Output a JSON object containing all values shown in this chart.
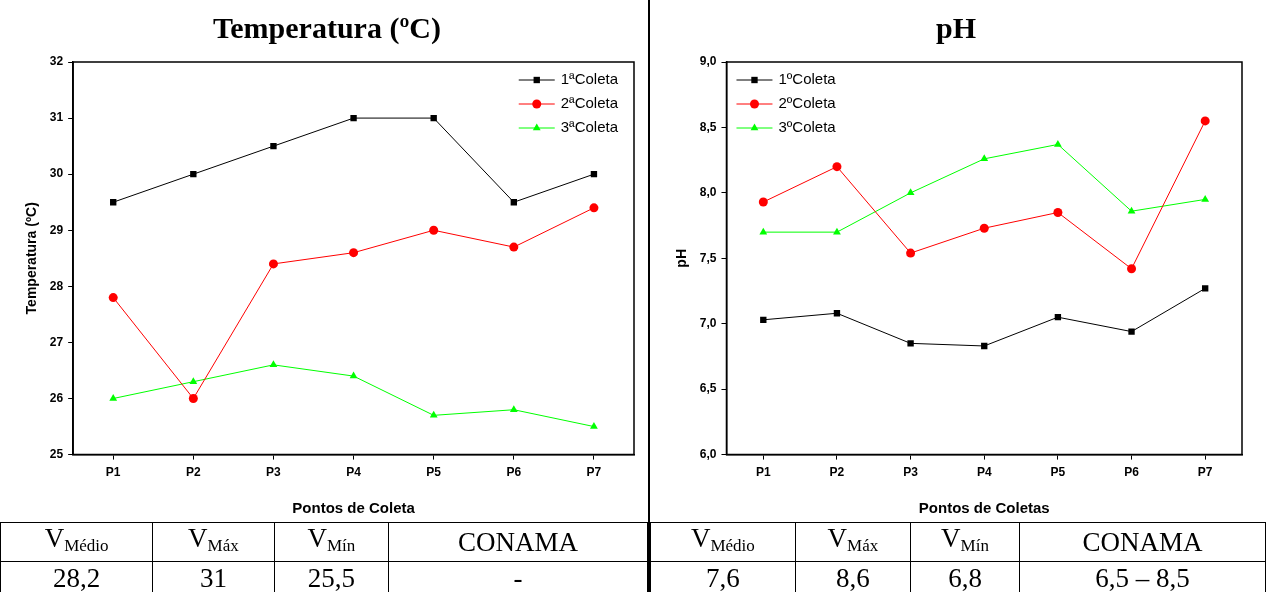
{
  "chart_data": [
    {
      "type": "line",
      "title": "Temperatura (ºC)",
      "xlabel": "Pontos de Coleta",
      "ylabel": "Temperatura (ºC)",
      "categories": [
        "P1",
        "P2",
        "P3",
        "P4",
        "P5",
        "P6",
        "P7"
      ],
      "series": [
        {
          "name": "1ªColeta",
          "color": "#000000",
          "marker": "square",
          "values": [
            29.5,
            30.0,
            30.5,
            31.0,
            31.0,
            29.5,
            30.0
          ]
        },
        {
          "name": "2ªColeta",
          "color": "#ff0000",
          "marker": "circle",
          "values": [
            27.8,
            26.0,
            28.4,
            28.6,
            29.0,
            28.7,
            29.4
          ]
        },
        {
          "name": "3ªColeta",
          "color": "#00ff00",
          "marker": "triangle",
          "values": [
            26.0,
            26.3,
            26.6,
            26.4,
            25.7,
            25.8,
            25.5
          ]
        }
      ],
      "ylim": [
        25,
        32
      ],
      "yticks": [
        25,
        26,
        27,
        28,
        29,
        30,
        31,
        32
      ],
      "grid": false,
      "legend": "top right",
      "line_style": "solid",
      "annotations": [
        "V$_{Médio}$",
        "28,2",
        "V$_{Máx}$",
        "31",
        "V$_{Mín}$",
        "25,5",
        "CONAMA",
        "-"
      ]
    },
    {
      "type": "line",
      "title": "pH",
      "xlabel": "Pontos de Coletas",
      "ylabel": "pH",
      "categories": [
        "P1",
        "P2",
        "P3",
        "P4",
        "P5",
        "P6",
        "P7"
      ],
      "series": [
        {
          "name": "1ºColeta",
          "color": "#000000",
          "marker": "square",
          "values": [
            7.03,
            7.08,
            6.85,
            6.83,
            7.05,
            6.94,
            7.27
          ]
        },
        {
          "name": "2ºColeta",
          "color": "#ff0000",
          "marker": "circle",
          "values": [
            7.93,
            8.2,
            7.54,
            7.73,
            7.85,
            7.42,
            8.55
          ]
        },
        {
          "name": "3ºColeta",
          "color": "#00ff00",
          "marker": "triangle",
          "values": [
            7.7,
            7.7,
            8.0,
            8.26,
            8.37,
            7.86,
            7.95
          ]
        }
      ],
      "ylim": [
        6,
        9
      ],
      "yticks": [
        {
          "value": 6,
          "label": "6,0"
        },
        {
          "value": 6.5,
          "label": "6,5"
        },
        {
          "value": 7,
          "label": "7,0"
        },
        {
          "value": 7.5,
          "label": "7,5"
        },
        {
          "value": 8,
          "label": "8,0"
        },
        {
          "value": 8.5,
          "label": "8,5"
        },
        {
          "value": 9,
          "label": "9,0"
        }
      ],
      "grid": false,
      "legend": "top left",
      "line_style": "solid",
      "annotations": [
        "V$_{Médio}$",
        "7,6",
        "V$_{Máx}$",
        "8,6",
        "V$_{Mín}$",
        "6,8",
        "CONAMA",
        "6,5 – 8,5"
      ]
    }
  ]
}
